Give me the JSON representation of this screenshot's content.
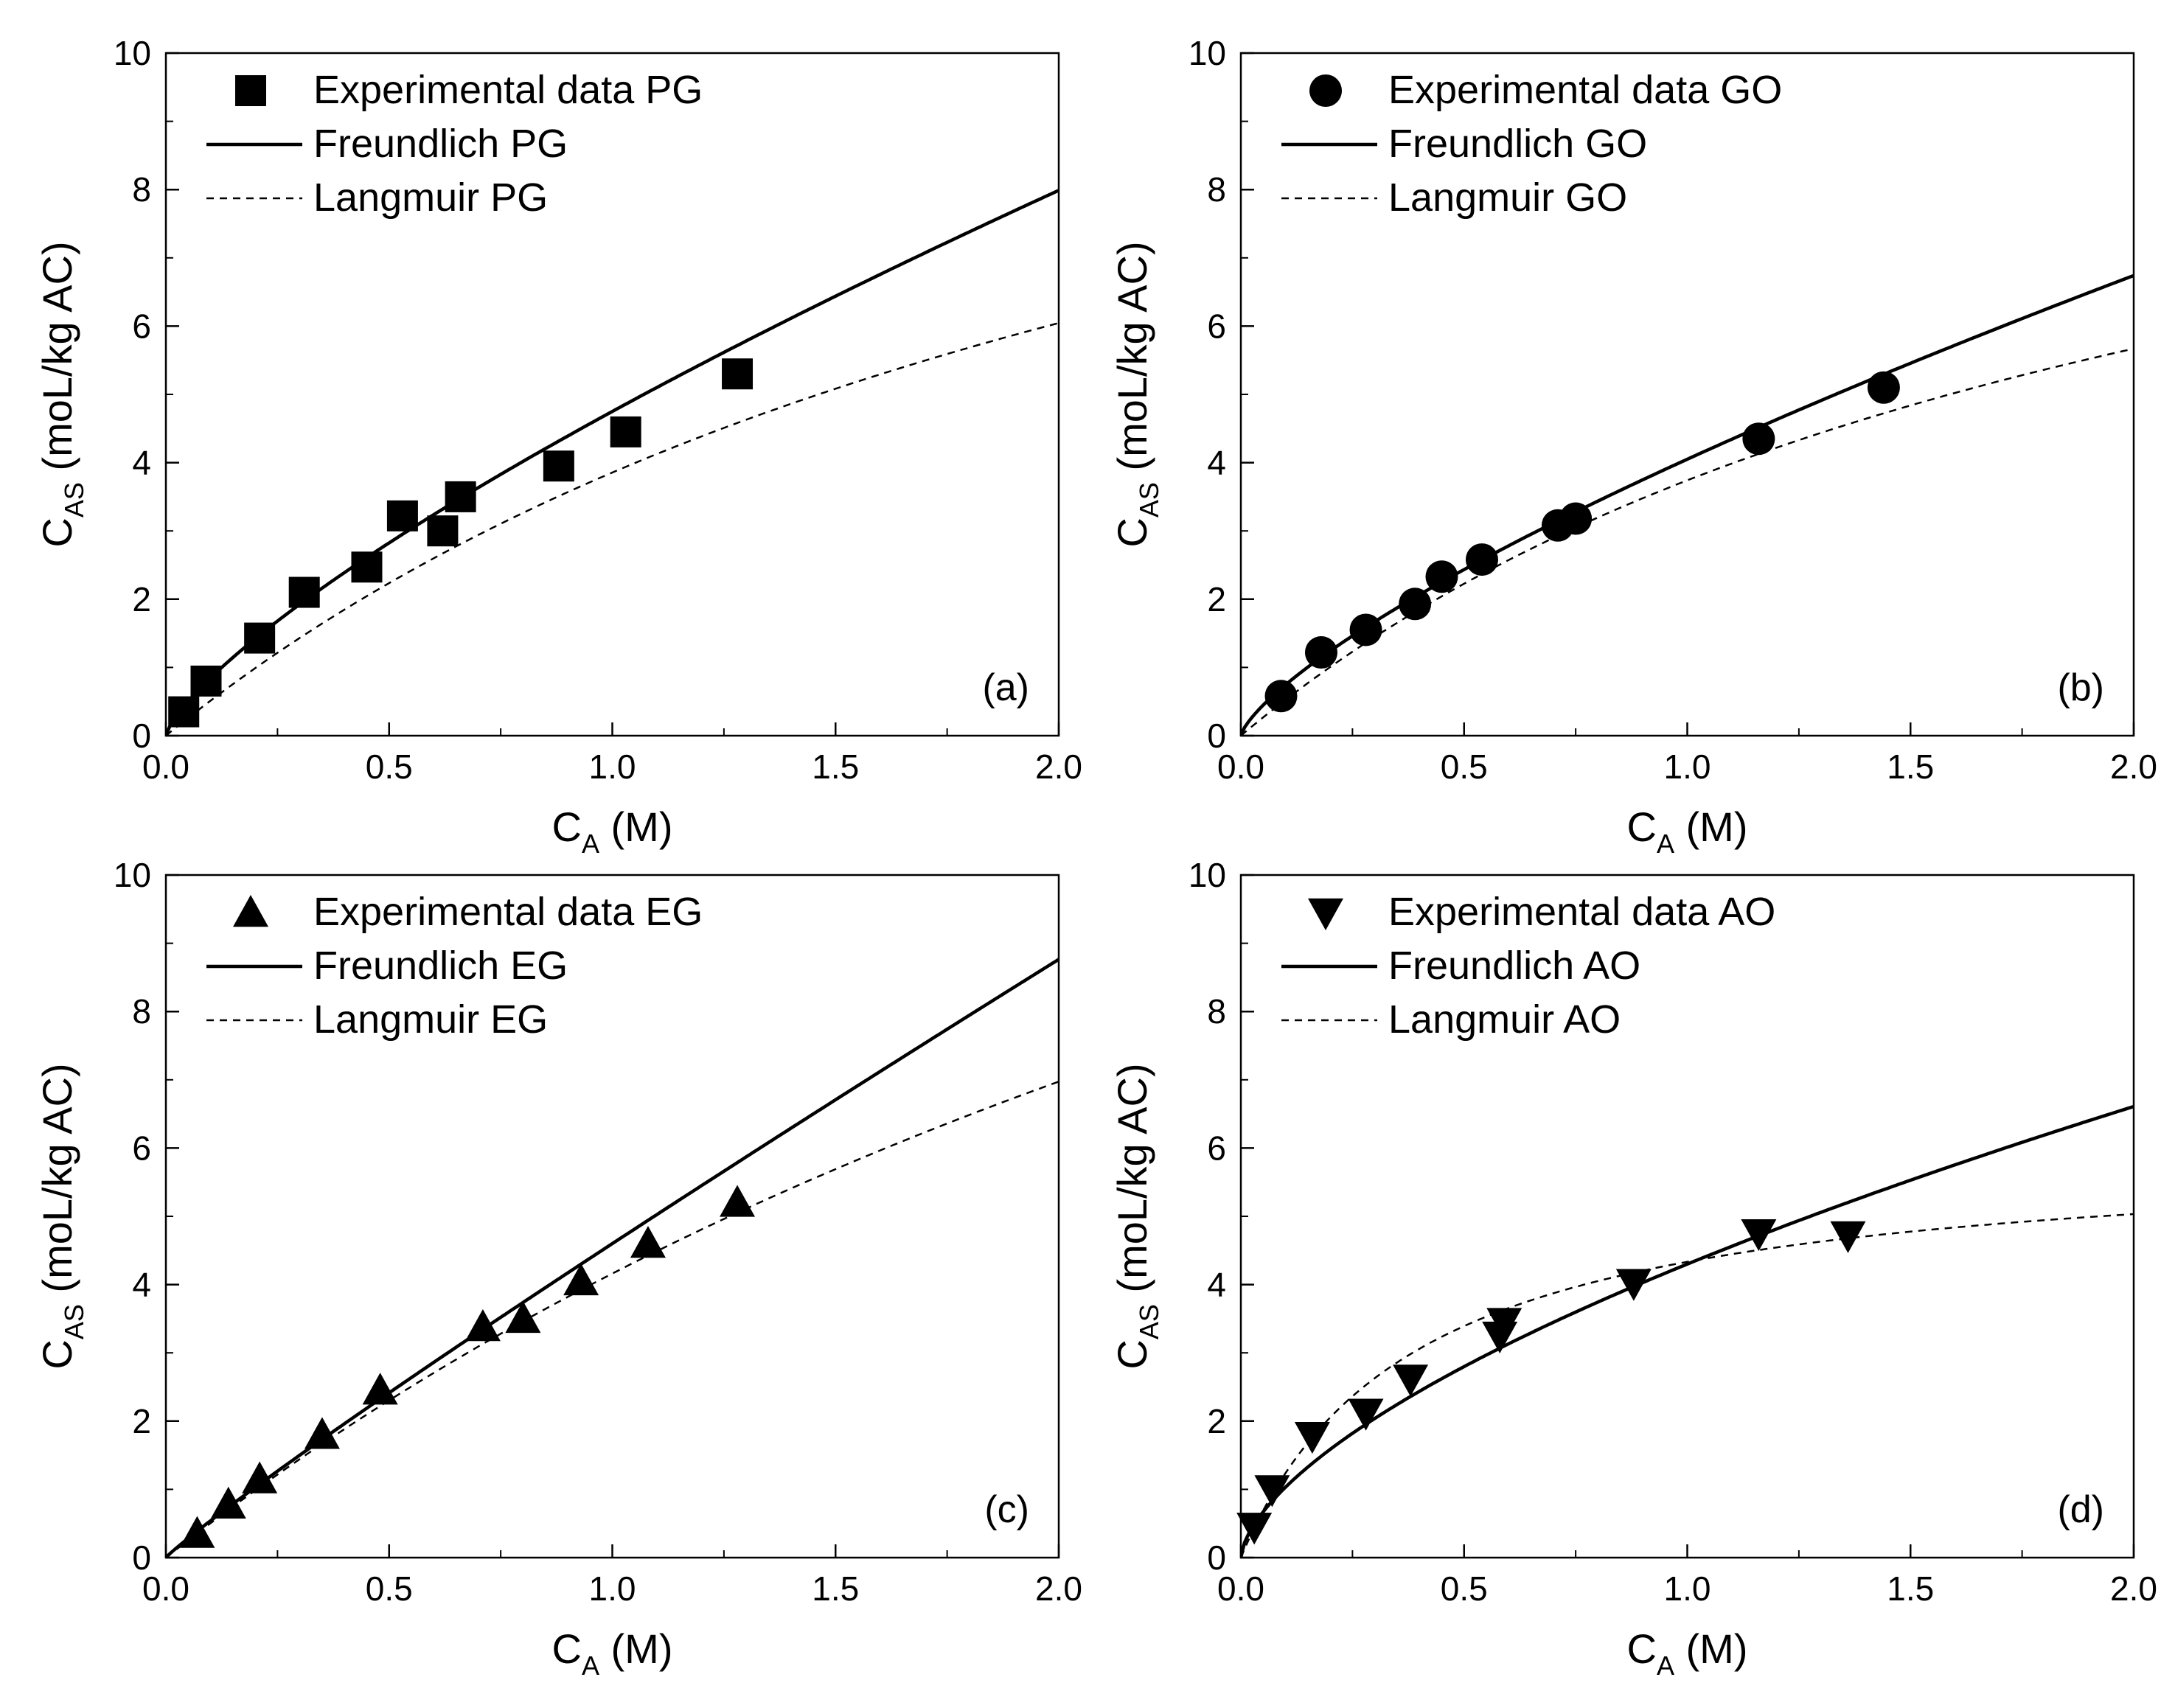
{
  "chart_data": [
    {
      "type": "scatter",
      "panel_label": "(a)",
      "xlabel": {
        "main": "C",
        "sub": "A",
        "unit": " (M)"
      },
      "ylabel": {
        "main": "C",
        "sub": "AS",
        "unit": " (moL/kg AC)"
      },
      "xlim": [
        0,
        2.0
      ],
      "ylim": [
        0,
        10
      ],
      "xticks": [
        "0.0",
        "0.5",
        "1.0",
        "1.5",
        "2.0"
      ],
      "yticks": [
        "0",
        "2",
        "4",
        "6",
        "8",
        "10"
      ],
      "legend_position": "top-left",
      "marker": "square",
      "series": [
        {
          "name": "Experimental data PG",
          "kind": "points",
          "x": [
            0.04,
            0.09,
            0.21,
            0.31,
            0.45,
            0.53,
            0.62,
            0.66,
            0.88,
            1.03,
            1.28
          ],
          "y": [
            0.35,
            0.8,
            1.43,
            2.1,
            2.47,
            3.22,
            3.0,
            3.5,
            3.95,
            4.45,
            5.3
          ]
        },
        {
          "name": "Freundlich PG",
          "kind": "freundlich",
          "K": 4.75,
          "n": 0.75
        },
        {
          "name": "Langmuir PG",
          "kind": "langmuir",
          "Qmax": 14.0,
          "b": 0.38
        }
      ]
    },
    {
      "type": "scatter",
      "panel_label": "(b)",
      "xlabel": {
        "main": "C",
        "sub": "A",
        "unit": " (M)"
      },
      "ylabel": {
        "main": "C",
        "sub": "AS",
        "unit": " (moL/kg AC)"
      },
      "xlim": [
        0,
        2.0
      ],
      "ylim": [
        0,
        10
      ],
      "xticks": [
        "0.0",
        "0.5",
        "1.0",
        "1.5",
        "2.0"
      ],
      "yticks": [
        "0",
        "2",
        "4",
        "6",
        "8",
        "10"
      ],
      "legend_position": "top-left",
      "marker": "circle",
      "series": [
        {
          "name": "Experimental data GO",
          "kind": "points",
          "x": [
            0.09,
            0.18,
            0.28,
            0.39,
            0.45,
            0.54,
            0.71,
            0.75,
            1.16,
            1.44
          ],
          "y": [
            0.58,
            1.22,
            1.55,
            1.93,
            2.33,
            2.58,
            3.08,
            3.18,
            4.35,
            5.1
          ]
        },
        {
          "name": "Freundlich GO",
          "kind": "freundlich",
          "K": 4.05,
          "n": 0.735
        },
        {
          "name": "Langmuir  GO",
          "kind": "langmuir",
          "Qmax": 11.7,
          "b": 0.47
        }
      ]
    },
    {
      "type": "scatter",
      "panel_label": "(c)",
      "xlabel": {
        "main": "C",
        "sub": "A",
        "unit": " (M)"
      },
      "ylabel": {
        "main": "C",
        "sub": "AS",
        "unit": " (moL/kg AC)"
      },
      "xlim": [
        0,
        2.0
      ],
      "ylim": [
        0,
        10
      ],
      "xticks": [
        "0.0",
        "0.5",
        "1.0",
        "1.5",
        "2.0"
      ],
      "yticks": [
        "0",
        "2",
        "4",
        "6",
        "8",
        "10"
      ],
      "legend_position": "top-left",
      "marker": "triangle-up",
      "series": [
        {
          "name": "Experimental data EG",
          "kind": "points",
          "x": [
            0.07,
            0.14,
            0.21,
            0.35,
            0.48,
            0.71,
            0.8,
            0.93,
            1.08,
            1.28
          ],
          "y": [
            0.35,
            0.78,
            1.15,
            1.8,
            2.45,
            3.38,
            3.5,
            4.05,
            4.6,
            5.2
          ]
        },
        {
          "name": "Freundlich EG",
          "kind": "freundlich",
          "K": 4.6,
          "n": 0.93
        },
        {
          "name": "Langmuir EG",
          "kind": "langmuir",
          "Qmax": 21.5,
          "b": 0.24
        }
      ]
    },
    {
      "type": "scatter",
      "panel_label": "(d)",
      "xlabel": {
        "main": "C",
        "sub": "A",
        "unit": " (M)"
      },
      "ylabel": {
        "main": "C",
        "sub": "AS",
        "unit": " (moL/kg AC)"
      },
      "xlim": [
        0,
        2.0
      ],
      "ylim": [
        0,
        10
      ],
      "xticks": [
        "0.0",
        "0.5",
        "1.0",
        "1.5",
        "2.0"
      ],
      "yticks": [
        "0",
        "2",
        "4",
        "6",
        "8",
        "10"
      ],
      "legend_position": "top-left",
      "marker": "triangle-down",
      "series": [
        {
          "name": "Experimental data AO",
          "kind": "points",
          "x": [
            0.03,
            0.07,
            0.16,
            0.28,
            0.38,
            0.58,
            0.59,
            0.88,
            1.16,
            1.36
          ],
          "y": [
            0.45,
            1.0,
            1.78,
            2.12,
            2.62,
            3.25,
            3.45,
            4.02,
            4.75,
            4.72
          ]
        },
        {
          "name": "Freundlich AO",
          "kind": "freundlich",
          "K": 4.3,
          "n": 0.62
        },
        {
          "name": "Langmuir AO",
          "kind": "langmuir",
          "Qmax": 6.0,
          "b": 2.6
        }
      ]
    }
  ]
}
